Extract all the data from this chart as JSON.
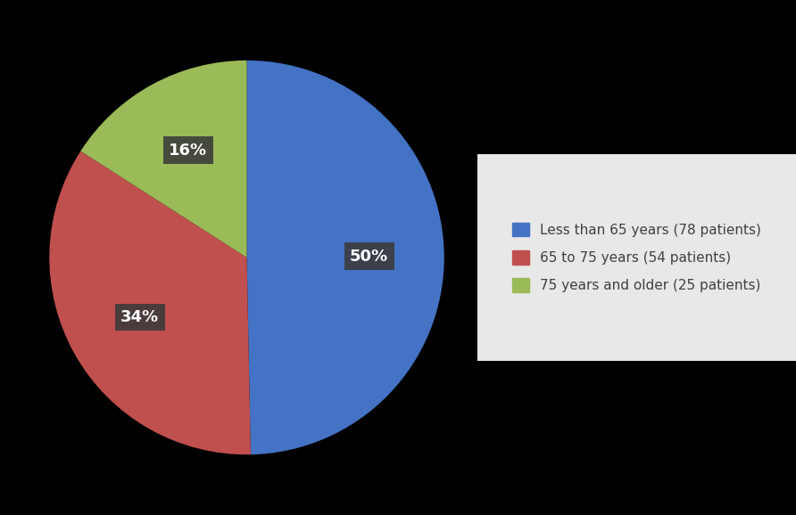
{
  "slices": [
    78,
    54,
    25
  ],
  "percentages": [
    "50%",
    "34%",
    "16%"
  ],
  "colors": [
    "#4472C4",
    "#C0504D",
    "#9BBB59"
  ],
  "labels": [
    "Less than 65 years (78 patients)",
    "65 to 75 years (54 patients)",
    "75 years and older (25 patients)"
  ],
  "background_color": "#000000",
  "legend_bg_color": "#E8E8E8",
  "label_bg_color": "#3A3A3A",
  "label_text_color": "#FFFFFF",
  "label_fontsize": 13,
  "legend_fontsize": 11,
  "startangle": 90,
  "pctdistance": 0.62
}
